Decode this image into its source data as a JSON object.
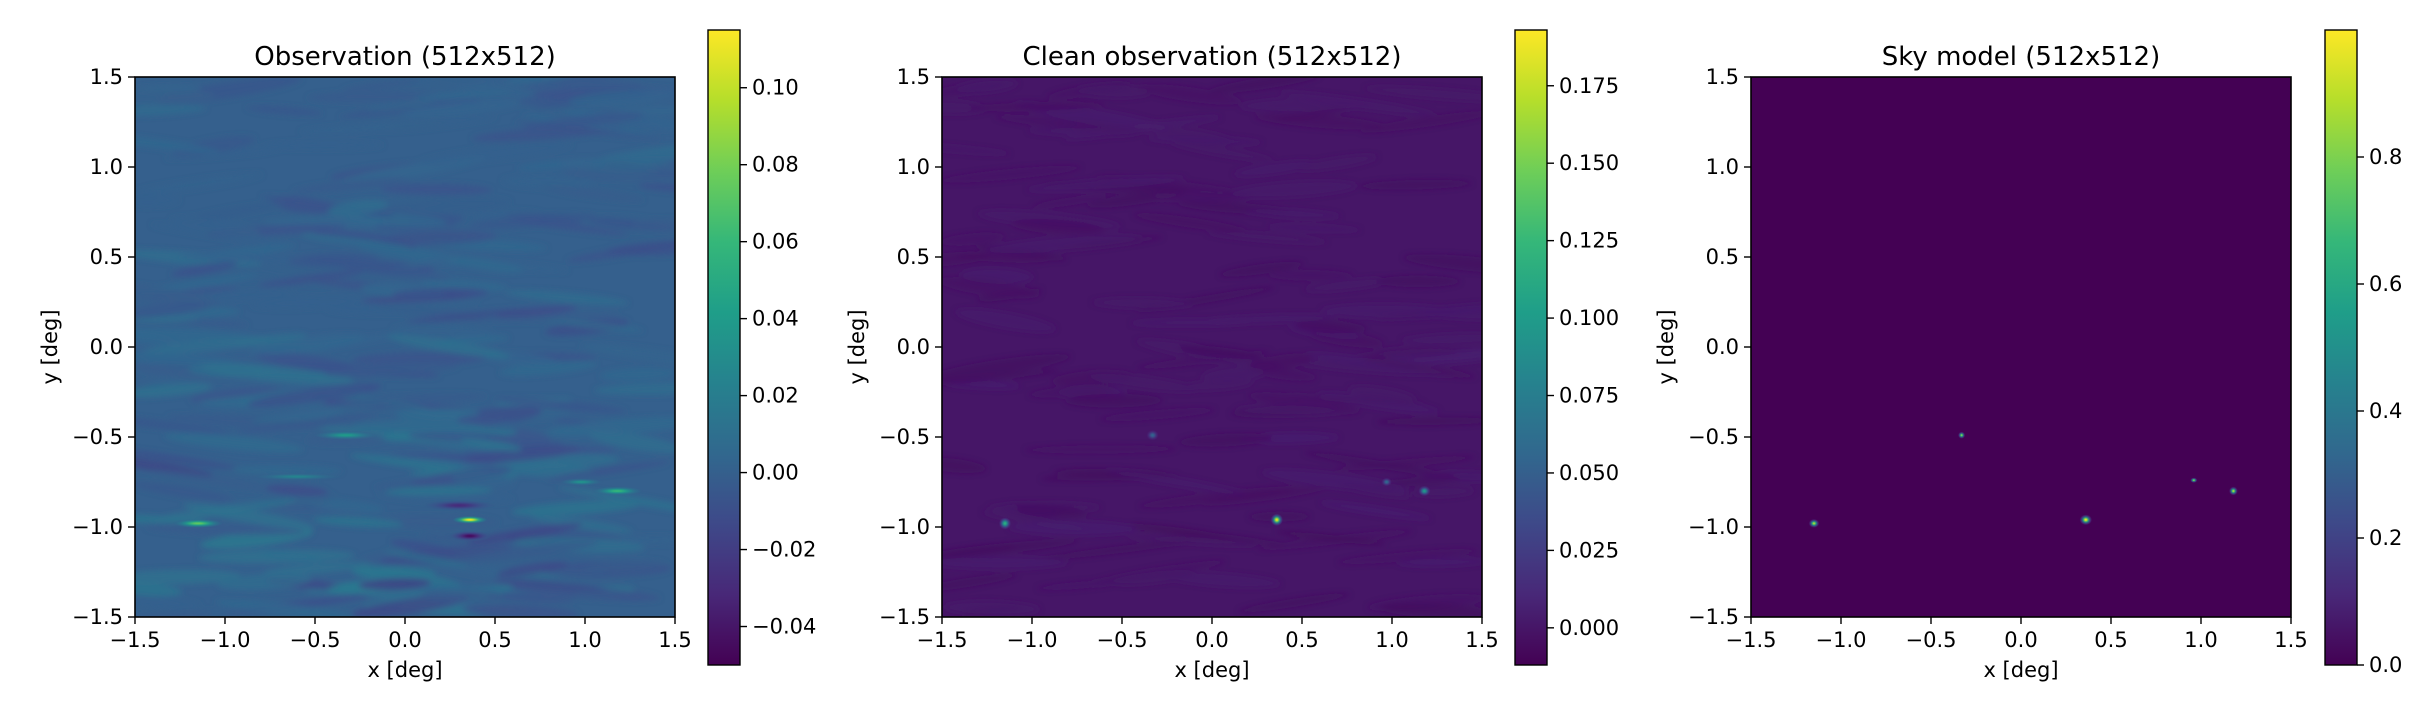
{
  "chart_data": [
    {
      "type": "heatmap",
      "title": "Observation (512x512)",
      "xlabel": "x [deg]",
      "ylabel": "y [deg]",
      "xlim": [
        -1.5,
        1.5
      ],
      "ylim": [
        -1.5,
        1.5
      ],
      "xticks": [
        "−1.5",
        "−1.0",
        "−0.5",
        "0.0",
        "0.5",
        "1.0",
        "1.5"
      ],
      "yticks": [
        "−1.5",
        "−1.0",
        "−0.5",
        "0.0",
        "0.5",
        "1.0",
        "1.5"
      ],
      "colormap": "viridis",
      "colorbar": {
        "range": [
          -0.05,
          0.115
        ],
        "ticks": [
          {
            "value": -0.04,
            "label": "−0.04"
          },
          {
            "value": -0.02,
            "label": "−0.02"
          },
          {
            "value": 0.0,
            "label": "0.00"
          },
          {
            "value": 0.02,
            "label": "0.02"
          },
          {
            "value": 0.04,
            "label": "0.04"
          },
          {
            "value": 0.06,
            "label": "0.06"
          },
          {
            "value": 0.08,
            "label": "0.08"
          },
          {
            "value": 0.1,
            "label": "0.10"
          }
        ]
      },
      "background_level": 0.0,
      "features": [
        {
          "x": -1.15,
          "y": -0.98,
          "value": 0.075,
          "wx": 0.14,
          "wy": 0.025
        },
        {
          "x": 0.36,
          "y": -0.96,
          "value": 0.115,
          "wx": 0.1,
          "wy": 0.022
        },
        {
          "x": 0.36,
          "y": -1.05,
          "value": -0.045,
          "wx": 0.12,
          "wy": 0.03
        },
        {
          "x": 1.18,
          "y": -0.8,
          "value": 0.06,
          "wx": 0.14,
          "wy": 0.025
        },
        {
          "x": 0.98,
          "y": -0.75,
          "value": 0.035,
          "wx": 0.12,
          "wy": 0.02
        },
        {
          "x": -0.33,
          "y": -0.49,
          "value": 0.04,
          "wx": 0.18,
          "wy": 0.025
        },
        {
          "x": 0.3,
          "y": -0.88,
          "value": -0.03,
          "wx": 0.2,
          "wy": 0.03
        },
        {
          "x": -0.6,
          "y": -0.72,
          "value": 0.025,
          "wx": 0.25,
          "wy": 0.02
        }
      ]
    },
    {
      "type": "heatmap",
      "title": "Clean observation (512x512)",
      "xlabel": "x [deg]",
      "ylabel": "y [deg]",
      "xlim": [
        -1.5,
        1.5
      ],
      "ylim": [
        -1.5,
        1.5
      ],
      "xticks": [
        "−1.5",
        "−1.0",
        "−0.5",
        "0.0",
        "0.5",
        "1.0",
        "1.5"
      ],
      "yticks": [
        "−1.5",
        "−1.0",
        "−0.5",
        "0.0",
        "0.5",
        "1.0",
        "1.5"
      ],
      "colormap": "viridis",
      "colorbar": {
        "range": [
          -0.012,
          0.193
        ],
        "ticks": [
          {
            "value": 0.0,
            "label": "0.000"
          },
          {
            "value": 0.025,
            "label": "0.025"
          },
          {
            "value": 0.05,
            "label": "0.050"
          },
          {
            "value": 0.075,
            "label": "0.075"
          },
          {
            "value": 0.1,
            "label": "0.100"
          },
          {
            "value": 0.125,
            "label": "0.125"
          },
          {
            "value": 0.15,
            "label": "0.150"
          },
          {
            "value": 0.175,
            "label": "0.175"
          }
        ]
      },
      "background_level": 0.0,
      "features": [
        {
          "x": -1.15,
          "y": -0.98,
          "value": 0.12,
          "wx": 0.035,
          "wy": 0.035
        },
        {
          "x": -0.33,
          "y": -0.49,
          "value": 0.055,
          "wx": 0.035,
          "wy": 0.03
        },
        {
          "x": 0.36,
          "y": -0.96,
          "value": 0.19,
          "wx": 0.035,
          "wy": 0.035
        },
        {
          "x": 0.97,
          "y": -0.75,
          "value": 0.06,
          "wx": 0.03,
          "wy": 0.025
        },
        {
          "x": 1.18,
          "y": -0.8,
          "value": 0.1,
          "wx": 0.035,
          "wy": 0.03
        }
      ]
    },
    {
      "type": "heatmap",
      "title": "Sky model (512x512)",
      "xlabel": "x [deg]",
      "ylabel": "y [deg]",
      "xlim": [
        -1.5,
        1.5
      ],
      "ylim": [
        -1.5,
        1.5
      ],
      "xticks": [
        "−1.5",
        "−1.0",
        "−0.5",
        "0.0",
        "0.5",
        "1.0",
        "1.5"
      ],
      "yticks": [
        "−1.5",
        "−1.0",
        "−0.5",
        "0.0",
        "0.5",
        "1.0",
        "1.5"
      ],
      "colormap": "viridis",
      "colorbar": {
        "range": [
          0.0,
          1.0
        ],
        "ticks": [
          {
            "value": 0.0,
            "label": "0.0"
          },
          {
            "value": 0.2,
            "label": "0.2"
          },
          {
            "value": 0.4,
            "label": "0.4"
          },
          {
            "value": 0.6,
            "label": "0.6"
          },
          {
            "value": 0.8,
            "label": "0.8"
          }
        ]
      },
      "background_level": 0.0,
      "features": [
        {
          "x": -1.15,
          "y": -0.98,
          "value": 0.9,
          "wx": 0.03,
          "wy": 0.025
        },
        {
          "x": -0.33,
          "y": -0.49,
          "value": 0.85,
          "wx": 0.02,
          "wy": 0.02
        },
        {
          "x": 0.36,
          "y": -0.96,
          "value": 1.0,
          "wx": 0.035,
          "wy": 0.03
        },
        {
          "x": 0.96,
          "y": -0.74,
          "value": 0.85,
          "wx": 0.02,
          "wy": 0.015
        },
        {
          "x": 1.18,
          "y": -0.8,
          "value": 0.9,
          "wx": 0.025,
          "wy": 0.025
        }
      ]
    }
  ]
}
